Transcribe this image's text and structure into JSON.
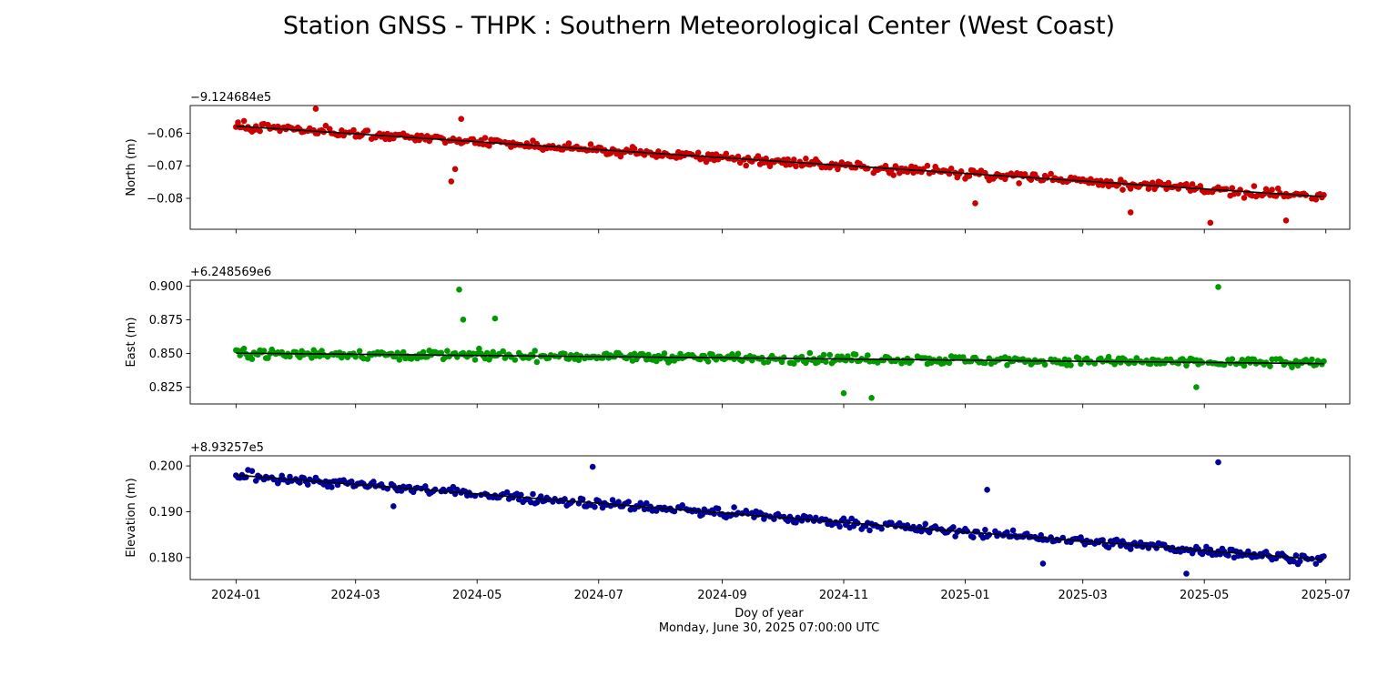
{
  "title": "Station GNSS - THPK : Southern Meteorological Center (West Coast)",
  "xlabel": "Doy of year",
  "xlabel_sub": "Monday, June 30, 2025 07:00:00 UTC",
  "chart_data": [
    {
      "type": "scatter",
      "name": "north",
      "ylabel": "North (m)",
      "offset_label": "−9.124684e5",
      "color": "#cc0000",
      "trend_color": "#000000",
      "x_ticks": [
        "2024-01",
        "2024-03",
        "2024-05",
        "2024-07",
        "2024-09",
        "2024-11",
        "2025-01",
        "2025-03",
        "2025-05",
        "2025-07"
      ],
      "xlim": [
        "2023-12-09",
        "2025-07-13"
      ],
      "y_ticks": [
        -0.06,
        -0.07,
        -0.08
      ],
      "y_tick_labels": [
        "−0.06",
        "−0.07",
        "−0.08"
      ],
      "ylim": [
        -0.0895,
        -0.0515
      ],
      "trend": {
        "start": [
          "2024-01-01",
          -0.0578
        ],
        "end": [
          "2025-06-30",
          -0.0795
        ]
      },
      "outliers": [
        {
          "x": "2024-02-10",
          "y": -0.0525
        },
        {
          "x": "2024-04-18",
          "y": -0.0748
        },
        {
          "x": "2024-04-20",
          "y": -0.071
        },
        {
          "x": "2024-04-23",
          "y": -0.0556
        },
        {
          "x": "2025-01-06",
          "y": -0.0815
        },
        {
          "x": "2025-03-25",
          "y": -0.0843
        },
        {
          "x": "2025-05-04",
          "y": -0.0875
        },
        {
          "x": "2025-06-11",
          "y": -0.0868
        }
      ]
    },
    {
      "type": "scatter",
      "name": "east",
      "ylabel": "East (m)",
      "offset_label": "+6.248569e6",
      "color": "#009900",
      "trend_color": "#000000",
      "x_ticks": [
        "2024-01",
        "2024-03",
        "2024-05",
        "2024-07",
        "2024-09",
        "2024-11",
        "2025-01",
        "2025-03",
        "2025-05",
        "2025-07"
      ],
      "xlim": [
        "2023-12-09",
        "2025-07-13"
      ],
      "y_ticks": [
        0.9,
        0.875,
        0.85,
        0.825
      ],
      "y_tick_labels": [
        "0.900",
        "0.875",
        "0.850",
        "0.825"
      ],
      "ylim": [
        0.8125,
        0.9045
      ],
      "trend": {
        "start": [
          "2024-01-01",
          0.8503
        ],
        "end": [
          "2025-06-30",
          0.8425
        ]
      },
      "outliers": [
        {
          "x": "2024-04-22",
          "y": 0.8975
        },
        {
          "x": "2024-04-24",
          "y": 0.8752
        },
        {
          "x": "2024-05-10",
          "y": 0.876
        },
        {
          "x": "2024-11-01",
          "y": 0.8205
        },
        {
          "x": "2024-11-15",
          "y": 0.817
        },
        {
          "x": "2025-05-08",
          "y": 0.8995
        },
        {
          "x": "2025-04-27",
          "y": 0.825
        }
      ]
    },
    {
      "type": "scatter",
      "name": "elevation",
      "ylabel": "Elevation (m)",
      "offset_label": "+8.93257e5",
      "color": "#000099",
      "trend_color": "#000000",
      "x_ticks": [
        "2024-01",
        "2024-03",
        "2024-05",
        "2024-07",
        "2024-09",
        "2024-11",
        "2025-01",
        "2025-03",
        "2025-05",
        "2025-07"
      ],
      "xlim": [
        "2023-12-09",
        "2025-07-13"
      ],
      "y_ticks": [
        0.2,
        0.19,
        0.18
      ],
      "y_tick_labels": [
        "0.200",
        "0.190",
        "0.180"
      ],
      "ylim": [
        0.1752,
        0.2022
      ],
      "trend": {
        "start": [
          "2024-01-01",
          0.198
        ],
        "end": [
          "2025-06-30",
          0.1795
        ]
      },
      "outliers": [
        {
          "x": "2024-06-28",
          "y": 0.1998
        },
        {
          "x": "2025-01-12",
          "y": 0.1948
        },
        {
          "x": "2025-02-09",
          "y": 0.1787
        },
        {
          "x": "2025-05-08",
          "y": 0.2008
        },
        {
          "x": "2025-04-22",
          "y": 0.1765
        },
        {
          "x": "2024-03-20",
          "y": 0.1912
        }
      ]
    }
  ]
}
